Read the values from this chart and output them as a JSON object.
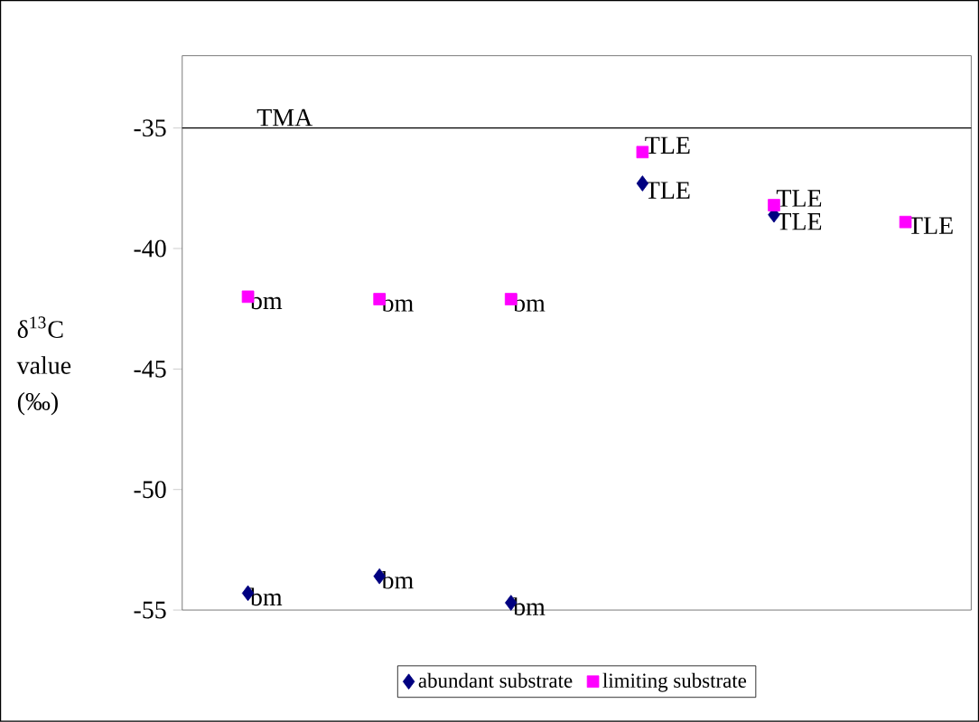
{
  "chart_data": {
    "type": "scatter",
    "ylabel": "δ$^{13}$C value (‰)",
    "categories": [
      null,
      null,
      null,
      null,
      null,
      null
    ],
    "series": [
      {
        "name": "abundant substrate",
        "color": "#000080",
        "marker": "diamond",
        "values": [
          -54.3,
          -53.6,
          -54.7,
          -37.3,
          -38.6,
          null
        ],
        "value_labels": [
          "bm",
          "bm",
          "bm",
          "TLE",
          "TLE",
          null
        ]
      },
      {
        "name": "limiting substrate",
        "color": "#ff00ff",
        "marker": "square",
        "values": [
          -42.0,
          -42.1,
          -42.1,
          -36.0,
          -38.2,
          -38.9
        ],
        "value_labels": [
          "bm",
          "bm",
          "bm",
          "TLE",
          "TLE",
          "TLE"
        ]
      }
    ],
    "ylim": [
      -55,
      -32
    ],
    "yticks": [
      -35,
      -40,
      -45,
      -50,
      -55
    ],
    "ref_lines": [
      {
        "axis": "y",
        "value": -35,
        "label": "TMA"
      }
    ],
    "tick_labels": "y",
    "legend": "bottom",
    "grid": false
  }
}
